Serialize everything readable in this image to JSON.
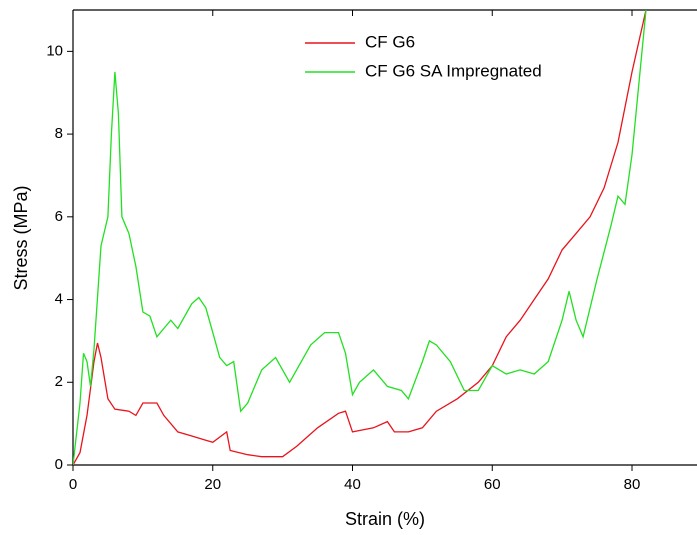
{
  "chart_data": {
    "type": "line",
    "x_label": "Strain (%)",
    "y_label": "Stress (MPa)",
    "xlim": [
      0,
      89.3
    ],
    "ylim": [
      0,
      11
    ],
    "xticks": [
      0,
      20,
      40,
      60,
      80
    ],
    "yticks": [
      0,
      2,
      4,
      6,
      8,
      10
    ],
    "legend": "upper center",
    "series": [
      {
        "name": "CF G6",
        "color": "#e8141c",
        "x": [
          0,
          1,
          2,
          3,
          3.5,
          4,
          5,
          6,
          8,
          9,
          10,
          12,
          13,
          15,
          17,
          19,
          20,
          22,
          22.5,
          25,
          27,
          30,
          32,
          35,
          38,
          39,
          40,
          43,
          45,
          46,
          48,
          50,
          52,
          55,
          58,
          60,
          62,
          64,
          66,
          68,
          70,
          72,
          74,
          76,
          78,
          80,
          82
        ],
        "values": [
          0,
          0.3,
          1.2,
          2.5,
          2.95,
          2.6,
          1.6,
          1.35,
          1.3,
          1.2,
          1.5,
          1.5,
          1.2,
          0.8,
          0.7,
          0.6,
          0.55,
          0.8,
          0.35,
          0.25,
          0.2,
          0.2,
          0.45,
          0.9,
          1.25,
          1.3,
          0.8,
          0.9,
          1.05,
          0.8,
          0.8,
          0.9,
          1.3,
          1.6,
          2.0,
          2.4,
          3.1,
          3.5,
          4.0,
          4.5,
          5.2,
          5.6,
          6.0,
          6.7,
          7.8,
          9.5,
          11
        ]
      },
      {
        "name": "CF G6 SA Impregnated",
        "color": "#22e022",
        "x": [
          0,
          1,
          1.5,
          2,
          2.5,
          3,
          4,
          5,
          5.5,
          6,
          6.5,
          7,
          8,
          9,
          10,
          11,
          12,
          13,
          14,
          15,
          17,
          18,
          19,
          20,
          21,
          22,
          23,
          24,
          25,
          27,
          29,
          30,
          31,
          32,
          34,
          36,
          38,
          39,
          40,
          41,
          43,
          45,
          47,
          48,
          50,
          51,
          52,
          54,
          56,
          58,
          60,
          62,
          64,
          66,
          68,
          70,
          71,
          72,
          73,
          75,
          77,
          78,
          79,
          80,
          82
        ],
        "values": [
          0,
          1.5,
          2.7,
          2.5,
          1.9,
          2.8,
          5.3,
          6.0,
          8,
          9.5,
          8.5,
          6,
          5.6,
          4.8,
          3.7,
          3.6,
          3.1,
          3.3,
          3.5,
          3.3,
          3.9,
          4.05,
          3.8,
          3.2,
          2.6,
          2.4,
          2.5,
          1.3,
          1.5,
          2.3,
          2.6,
          2.3,
          2.0,
          2.3,
          2.9,
          3.2,
          3.2,
          2.7,
          1.7,
          2.0,
          2.3,
          1.9,
          1.8,
          1.6,
          2.5,
          3.0,
          2.9,
          2.5,
          1.8,
          1.8,
          2.4,
          2.2,
          2.3,
          2.2,
          2.5,
          3.5,
          4.2,
          3.5,
          3.1,
          4.5,
          5.8,
          6.5,
          6.3,
          7.5,
          11
        ]
      }
    ]
  }
}
